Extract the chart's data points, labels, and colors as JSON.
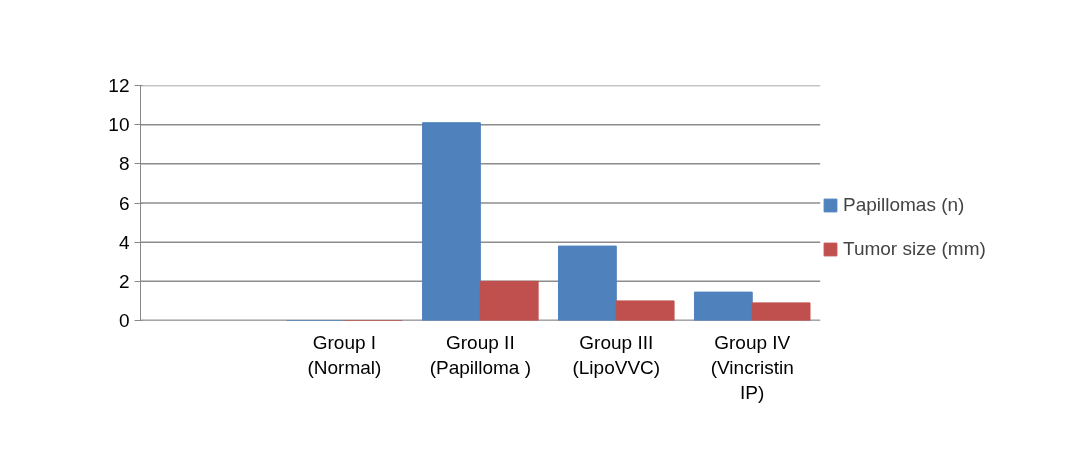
{
  "chart_data": {
    "type": "bar",
    "categories": [
      null,
      "Group I\n(Normal)",
      "Group II\n(Papilloma )",
      "Group III\n(LipoVVC)",
      "Group IV\n(Vincristin\nIP)"
    ],
    "series": [
      {
        "name": "Papillomas (n)",
        "color": "#4f81bd",
        "values": [
          null,
          0,
          10.1,
          3.8,
          1.45
        ]
      },
      {
        "name": "Tumor size (mm)",
        "color": "#c0504d",
        "values": [
          null,
          0,
          2.0,
          1.0,
          0.9
        ]
      }
    ],
    "ylim": [
      0,
      12
    ],
    "yticks": [
      0,
      2,
      4,
      6,
      8,
      10,
      12
    ],
    "grid": "y",
    "legend": "right"
  }
}
